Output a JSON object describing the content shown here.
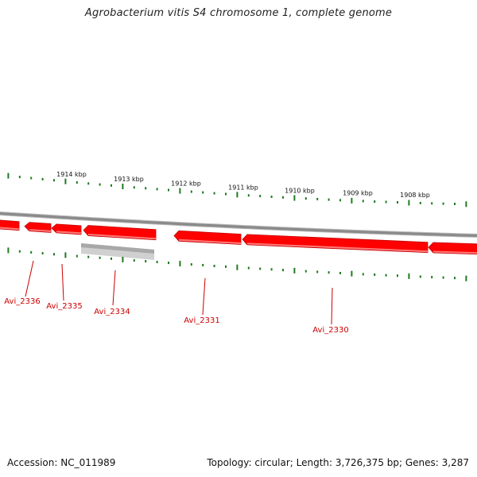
{
  "title": "Agrobacterium vitis S4 chromosome 1, complete genome",
  "accession_text": "Accession: NC_011989",
  "summary_text": "Topology: circular; Length: 3,726,375 bp; Genes: 3,287",
  "colors": {
    "backbone": "#8a8a8a",
    "gene_fill": "#ff0000",
    "gene_dark": "#c00000",
    "gene_light": "#ff7a7a",
    "pseudo_fill": "#a8a8a8",
    "pseudo_light": "#d0d0d0",
    "tick": "#1f7a1f",
    "label": "#cc0000"
  },
  "scale_labels": [
    "1914 kbp",
    "1913 kbp",
    "1912 kbp",
    "1911 kbp",
    "1910 kbp",
    "1909 kbp",
    "1908 kbp"
  ],
  "gene_labels": [
    "Avi_2336",
    "Avi_2335",
    "Avi_2334",
    "Avi_2331",
    "Avi_2330"
  ]
}
